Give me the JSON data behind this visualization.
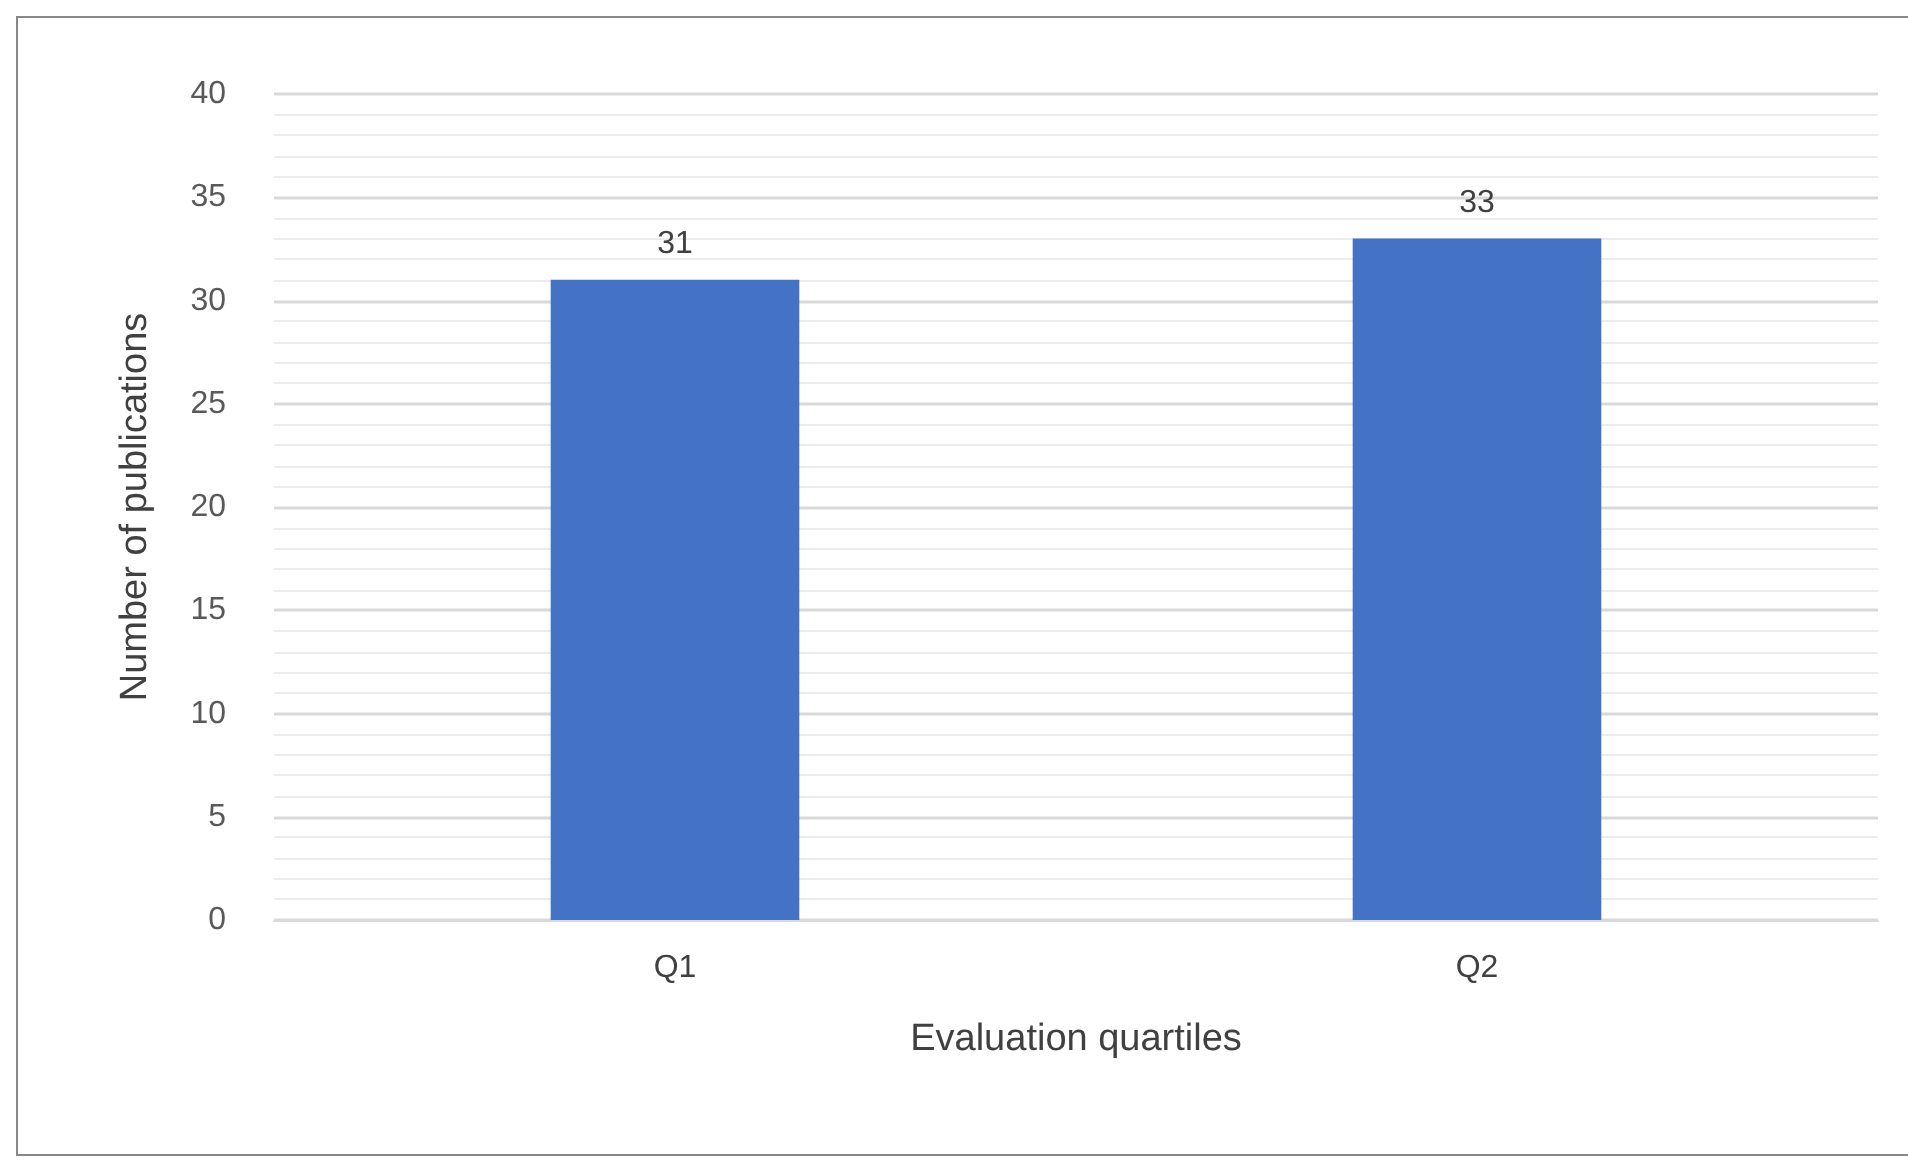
{
  "chart_data": {
    "type": "bar",
    "xlabel": "Evaluation quartiles",
    "ylabel": "Number of publications",
    "categories": [
      "Q1",
      "Q2"
    ],
    "values": [
      31,
      33
    ],
    "color": "#4472c4",
    "ylim": [
      0,
      40
    ],
    "yticks": [
      0,
      5,
      10,
      15,
      20,
      25,
      30,
      35,
      40
    ],
    "grid": "y",
    "data_labels": true
  }
}
